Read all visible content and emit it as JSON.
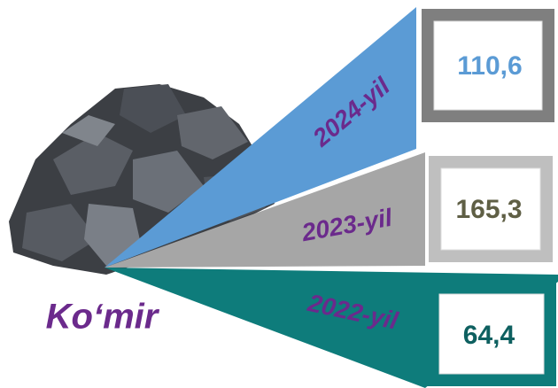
{
  "title": "Ko‘mir",
  "title_color": "#6b2a8c",
  "label_color": "#6b2a8c",
  "items": [
    {
      "year": "2024-yil",
      "value": "110,6",
      "wedge_color": "#5b9bd5",
      "box_color": "#7f7f7f",
      "value_color": "#5b9bd5"
    },
    {
      "year": "2023-yil",
      "value": "165,3",
      "wedge_color": "#a6a6a6",
      "box_color": "#bfbfbf",
      "value_color": "#5f5f45"
    },
    {
      "year": "2022-yil",
      "value": "64,4",
      "wedge_color": "#0e7c7b",
      "box_color": "#0e7c7b",
      "value_color": "#0e6060"
    }
  ]
}
